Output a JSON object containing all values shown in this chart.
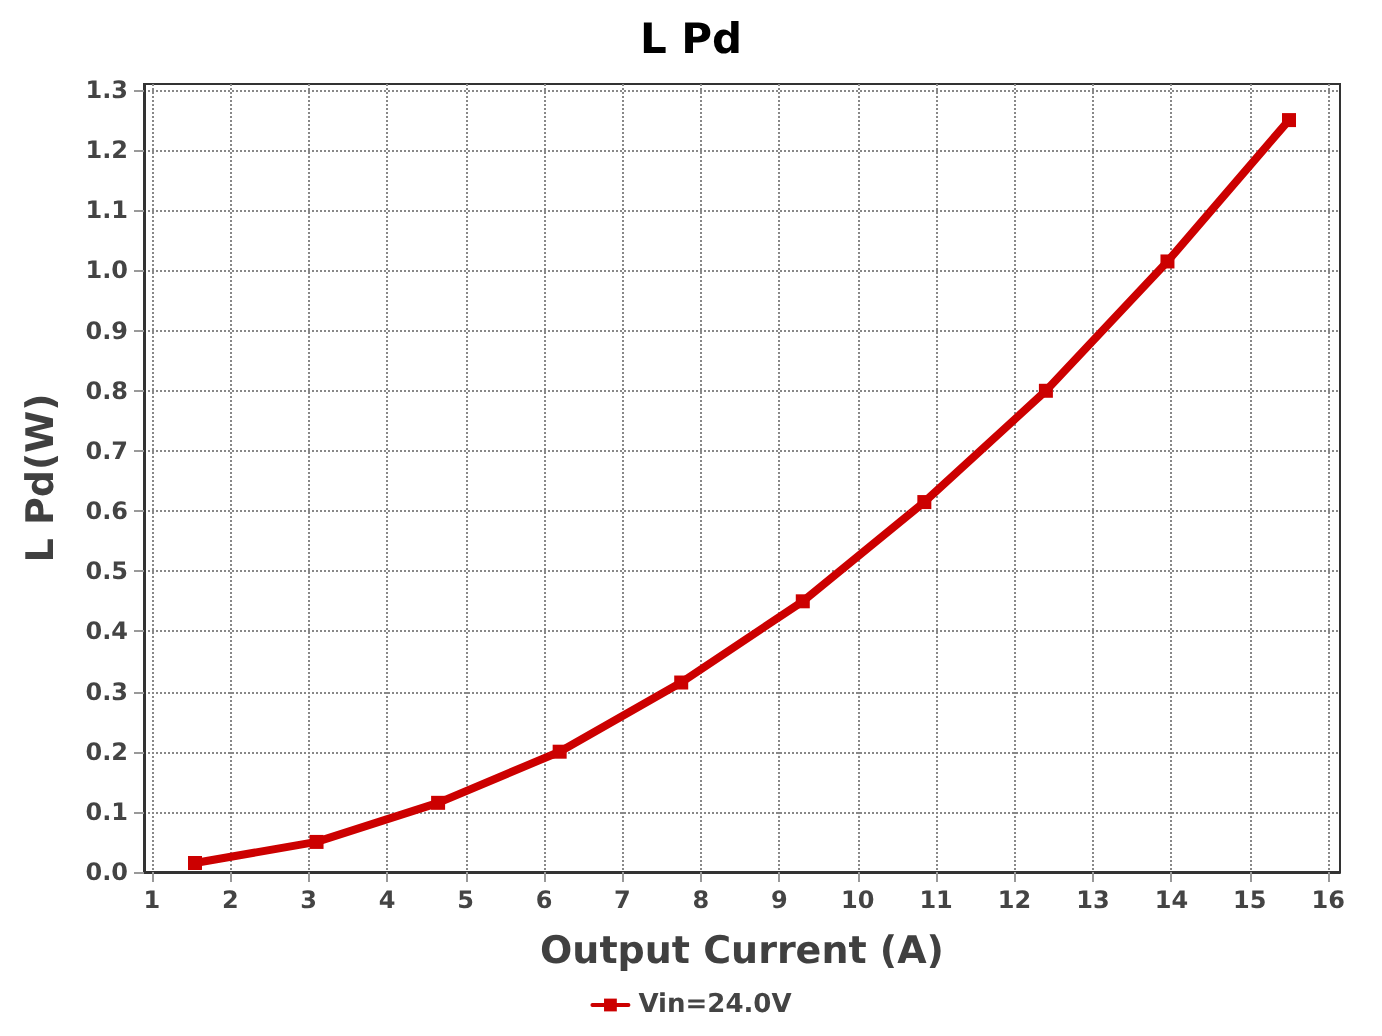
{
  "chart_data": {
    "type": "line",
    "title": "L Pd",
    "xlabel": "Output Current (A)",
    "ylabel": "L Pd(W)",
    "x": [
      1.55,
      3.1,
      4.65,
      6.2,
      7.75,
      9.3,
      10.85,
      12.4,
      13.95,
      15.5
    ],
    "series": [
      {
        "name": "Vin=24.0V",
        "color": "#cc0000",
        "values": [
          0.015,
          0.05,
          0.115,
          0.2,
          0.315,
          0.45,
          0.615,
          0.8,
          1.015,
          1.25
        ]
      }
    ],
    "xlim": [
      0.9,
      16.15
    ],
    "xticks": [
      1,
      2,
      3,
      4,
      5,
      6,
      7,
      8,
      9,
      10,
      11,
      12,
      13,
      14,
      15,
      16
    ],
    "ylim": [
      0,
      1.31
    ],
    "yticks": [
      {
        "value": 0,
        "label": "0.0"
      },
      0.1,
      0.2,
      0.3,
      0.4,
      0.5,
      0.6,
      0.7,
      0.8,
      0.9,
      {
        "value": 1,
        "label": "1.0"
      },
      1.1,
      1.2,
      1.3
    ],
    "grid": true,
    "legend": "bottom",
    "marker": "square",
    "line_style": "solid"
  }
}
